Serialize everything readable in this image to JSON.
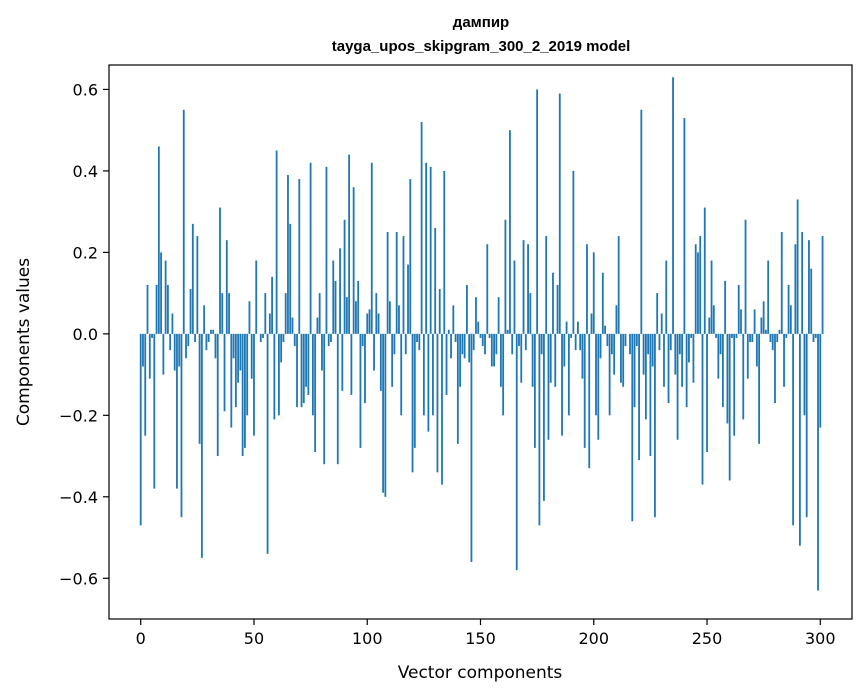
{
  "chart_data": {
    "type": "bar",
    "title_lines": [
      "дампир",
      "tayga_upos_skipgram_300_2_2019 model"
    ],
    "xlabel": "Vector components",
    "ylabel": "Components values",
    "xlim": [
      -14,
      314
    ],
    "ylim": [
      -0.7,
      0.66
    ],
    "x_ticks": [
      0,
      50,
      100,
      150,
      200,
      250,
      300
    ],
    "x_tick_labels": [
      "0",
      "50",
      "100",
      "150",
      "200",
      "250",
      "300"
    ],
    "y_ticks": [
      -0.6,
      -0.4,
      -0.2,
      0.0,
      0.2,
      0.4,
      0.6
    ],
    "y_tick_labels": [
      "−0.6",
      "−0.4",
      "−0.2",
      "0.0",
      "0.2",
      "0.4",
      "0.6"
    ],
    "bar_color": "#1f77b4",
    "grid": false,
    "values": [
      -0.47,
      -0.08,
      -0.25,
      0.12,
      -0.11,
      -0.01,
      -0.38,
      0.12,
      0.46,
      0.2,
      -0.1,
      0.18,
      0.12,
      -0.04,
      0.05,
      -0.09,
      -0.38,
      -0.08,
      -0.45,
      0.55,
      -0.06,
      -0.03,
      0.11,
      0.27,
      -0.02,
      0.24,
      -0.27,
      -0.55,
      0.07,
      -0.04,
      -0.02,
      0.01,
      0.01,
      -0.06,
      -0.3,
      0.31,
      0.1,
      -0.19,
      0.23,
      0.1,
      -0.23,
      -0.06,
      -0.18,
      -0.12,
      -0.09,
      -0.3,
      -0.28,
      -0.2,
      0.08,
      -0.11,
      -0.25,
      0.18,
      0.0,
      -0.02,
      -0.01,
      0.1,
      -0.54,
      0.05,
      0.14,
      -0.21,
      0.45,
      -0.2,
      -0.07,
      -0.02,
      0.1,
      0.39,
      0.27,
      0.04,
      -0.03,
      -0.18,
      0.38,
      -0.18,
      -0.17,
      -0.13,
      -0.15,
      0.42,
      -0.2,
      -0.29,
      0.04,
      0.1,
      -0.09,
      -0.32,
      0.41,
      -0.03,
      -0.02,
      0.18,
      0.13,
      -0.32,
      0.21,
      -0.14,
      0.28,
      0.09,
      0.44,
      -0.15,
      0.36,
      0.08,
      0.13,
      -0.28,
      -0.03,
      -0.17,
      0.05,
      0.06,
      0.42,
      -0.09,
      0.1,
      0.05,
      -0.14,
      -0.39,
      -0.4,
      0.25,
      0.08,
      -0.13,
      -0.05,
      0.25,
      0.07,
      -0.2,
      0.24,
      -0.05,
      0.17,
      0.38,
      -0.34,
      -0.28,
      -0.02,
      -0.04,
      0.52,
      -0.2,
      0.42,
      -0.24,
      0.41,
      -0.2,
      0.26,
      -0.34,
      0.11,
      -0.37,
      0.4,
      -0.15,
      0.01,
      -0.06,
      0.07,
      -0.02,
      -0.27,
      -0.13,
      -0.05,
      -0.06,
      0.12,
      -0.07,
      -0.56,
      -0.04,
      0.09,
      0.03,
      -0.01,
      -0.03,
      -0.05,
      0.22,
      -0.01,
      -0.08,
      -0.08,
      -0.05,
      0.09,
      -0.13,
      -0.2,
      0.28,
      0.01,
      0.5,
      -0.05,
      0.18,
      -0.58,
      -0.03,
      -0.12,
      0.23,
      -0.04,
      0.22,
      0.1,
      -0.13,
      -0.28,
      0.6,
      -0.47,
      -0.05,
      -0.41,
      0.24,
      -0.26,
      -0.12,
      0.15,
      -0.13,
      0.12,
      0.59,
      -0.25,
      -0.08,
      0.03,
      -0.2,
      -0.01,
      0.4,
      -0.04,
      0.03,
      -0.04,
      -0.11,
      -0.28,
      0.22,
      -0.33,
      0.05,
      0.2,
      -0.2,
      -0.26,
      -0.06,
      0.15,
      0.02,
      -0.03,
      -0.2,
      -0.05,
      -0.1,
      0.07,
      0.24,
      -0.12,
      -0.13,
      -0.03,
      0.0,
      -0.05,
      -0.46,
      -0.18,
      -0.03,
      -0.31,
      0.55,
      -0.1,
      -0.21,
      -0.05,
      -0.3,
      -0.08,
      -0.45,
      0.1,
      -0.04,
      0.05,
      -0.13,
      0.18,
      -0.17,
      -0.04,
      0.63,
      -0.1,
      -0.26,
      -0.05,
      -0.13,
      0.53,
      -0.18,
      -0.07,
      -0.01,
      -0.12,
      0.22,
      0.2,
      0.24,
      -0.37,
      0.31,
      -0.29,
      0.04,
      0.18,
      0.07,
      -0.01,
      -0.11,
      -0.05,
      -0.18,
      0.13,
      -0.22,
      -0.36,
      -0.01,
      -0.25,
      -0.01,
      0.12,
      0.06,
      -0.21,
      0.28,
      -0.11,
      -0.02,
      -0.02,
      0.06,
      -0.08,
      -0.27,
      0.04,
      0.08,
      0.01,
      0.18,
      -0.02,
      -0.04,
      -0.17,
      -0.02,
      0.01,
      0.25,
      -0.13,
      -0.01,
      0.12,
      0.07,
      -0.47,
      0.22,
      0.33,
      -0.52,
      0.25,
      -0.2,
      -0.45,
      0.23,
      0.16,
      -0.02,
      -0.01,
      -0.63,
      -0.23,
      0.24
    ]
  }
}
